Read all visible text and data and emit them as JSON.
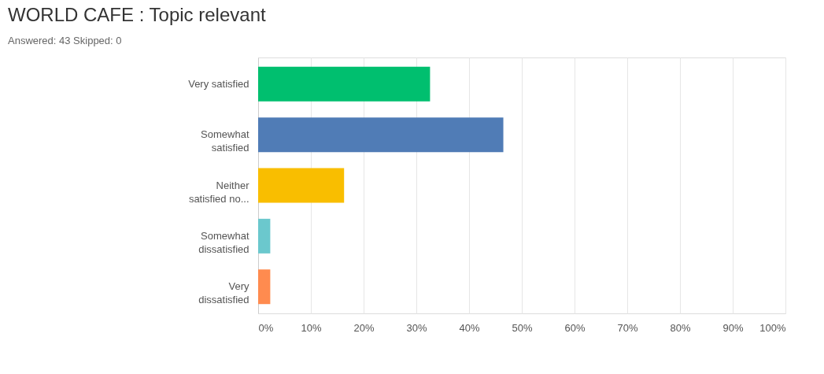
{
  "chart_data": {
    "type": "bar",
    "orientation": "horizontal",
    "title": "WORLD CAFE : Topic relevant",
    "subtitle": "Answered: 43    Skipped: 0",
    "categories": [
      "Very satisfied",
      "Somewhat\nsatisfied",
      "Neither\nsatisfied no...",
      "Somewhat\ndissatisfied",
      "Very\ndissatisfied"
    ],
    "values": [
      32.6,
      46.5,
      16.3,
      2.3,
      2.3
    ],
    "colors": [
      "#00bf6f",
      "#507cb6",
      "#f9be00",
      "#6bc8cd",
      "#ff8b4f"
    ],
    "xlim": [
      0,
      100
    ],
    "xticks": [
      {
        "value": 0,
        "label": "0%"
      },
      {
        "value": 10,
        "label": "10%"
      },
      {
        "value": 20,
        "label": "20%"
      },
      {
        "value": 30,
        "label": "30%"
      },
      {
        "value": 40,
        "label": "40%"
      },
      {
        "value": 50,
        "label": "50%"
      },
      {
        "value": 60,
        "label": "60%"
      },
      {
        "value": 70,
        "label": "70%"
      },
      {
        "value": 80,
        "label": "80%"
      },
      {
        "value": 90,
        "label": "90%"
      },
      {
        "value": 100,
        "label": "100%"
      }
    ],
    "grid": "x"
  }
}
